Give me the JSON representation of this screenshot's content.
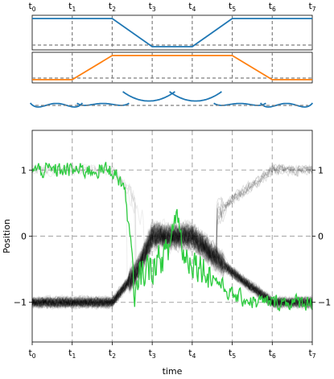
{
  "time_ticks": [
    {
      "base": "t",
      "sub": "0"
    },
    {
      "base": "t",
      "sub": "1"
    },
    {
      "base": "t",
      "sub": "2"
    },
    {
      "base": "t",
      "sub": "3"
    },
    {
      "base": "t",
      "sub": "4"
    },
    {
      "base": "t",
      "sub": "5"
    },
    {
      "base": "t",
      "sub": "6"
    },
    {
      "base": "t",
      "sub": "7"
    }
  ],
  "colors": {
    "blue": "#1f77b4",
    "orange": "#ff7f0e",
    "green": "#2ecc40",
    "trajectories": "#000000",
    "grid": "#b0b0b0",
    "dashed_ref": "#7f7f7f"
  },
  "chart_data": [
    {
      "type": "line",
      "panel": "top-control-1",
      "x": [
        0,
        1,
        2,
        3,
        4,
        5,
        6,
        7
      ],
      "series": [
        {
          "color": "#1f77b4",
          "values": [
            1,
            1,
            1,
            0,
            0,
            1,
            1,
            1
          ]
        }
      ],
      "reference_line": 0,
      "xgrid": true
    },
    {
      "type": "line",
      "panel": "top-control-2",
      "x": [
        0,
        1,
        2,
        3,
        4,
        5,
        6,
        7
      ],
      "series": [
        {
          "color": "#ff7f0e",
          "values": [
            0,
            0,
            1,
            1,
            1,
            1,
            0,
            0
          ]
        }
      ],
      "reference_line": 0,
      "xgrid": true
    },
    {
      "type": "line",
      "panel": "potential-snapshots",
      "snapshots": [
        {
          "a": 0.0,
          "b": 1.0
        },
        {
          "a": 0.0,
          "b": 0.55
        },
        {
          "a": 1.0,
          "b": 0.0
        },
        {
          "a": 1.0,
          "b": 0.0
        },
        {
          "a": 0.0,
          "b": 0.55
        },
        {
          "a": 0.0,
          "b": 1.0
        }
      ]
    },
    {
      "type": "line",
      "panel": "main",
      "xlabel": "time",
      "ylabel": "Position",
      "xlim": [
        0,
        7
      ],
      "ylim": [
        -1.6,
        1.6
      ],
      "yticks": [
        -1,
        0,
        1
      ],
      "ytick_labels": [
        "−1",
        "0",
        "1"
      ],
      "grid": true,
      "x_breakpoints": [
        0,
        1,
        2,
        3,
        4,
        5,
        6,
        7
      ],
      "ensemble_trajectories": {
        "count": 90,
        "color": "#000000",
        "state_means_by_breakpoint": [
          {
            "x": 0,
            "upper": 1.0,
            "lower": -1.0
          },
          {
            "x": 2,
            "upper": 1.0,
            "lower": -1.0
          },
          {
            "x": 2.6,
            "upper": 0.55,
            "lower": -0.55
          },
          {
            "x": 3,
            "upper": 0.0,
            "lower": 0.0
          },
          {
            "x": 4,
            "upper": 0.0,
            "lower": 0.0
          },
          {
            "x": 5,
            "upper": 0.55,
            "lower": -0.55
          },
          {
            "x": 6,
            "upper": 1.0,
            "lower": -1.0
          },
          {
            "x": 7,
            "upper": 1.0,
            "lower": -1.0
          }
        ]
      },
      "series": [
        {
          "color": "#2ecc40",
          "path": [
            {
              "x": 0.0,
              "y": 1.0
            },
            {
              "x": 2.0,
              "y": 1.0
            },
            {
              "x": 2.3,
              "y": 0.75
            },
            {
              "x": 2.5,
              "y": -0.3
            },
            {
              "x": 2.55,
              "y": -1.2
            },
            {
              "x": 2.65,
              "y": -0.6
            },
            {
              "x": 3.0,
              "y": -0.45
            },
            {
              "x": 3.4,
              "y": -0.25
            },
            {
              "x": 3.6,
              "y": 0.4
            },
            {
              "x": 3.8,
              "y": -0.3
            },
            {
              "x": 4.0,
              "y": -0.35
            },
            {
              "x": 4.5,
              "y": -0.6
            },
            {
              "x": 5.0,
              "y": -0.9
            },
            {
              "x": 5.6,
              "y": -1.0
            },
            {
              "x": 7.0,
              "y": -1.0
            }
          ]
        }
      ]
    }
  ]
}
